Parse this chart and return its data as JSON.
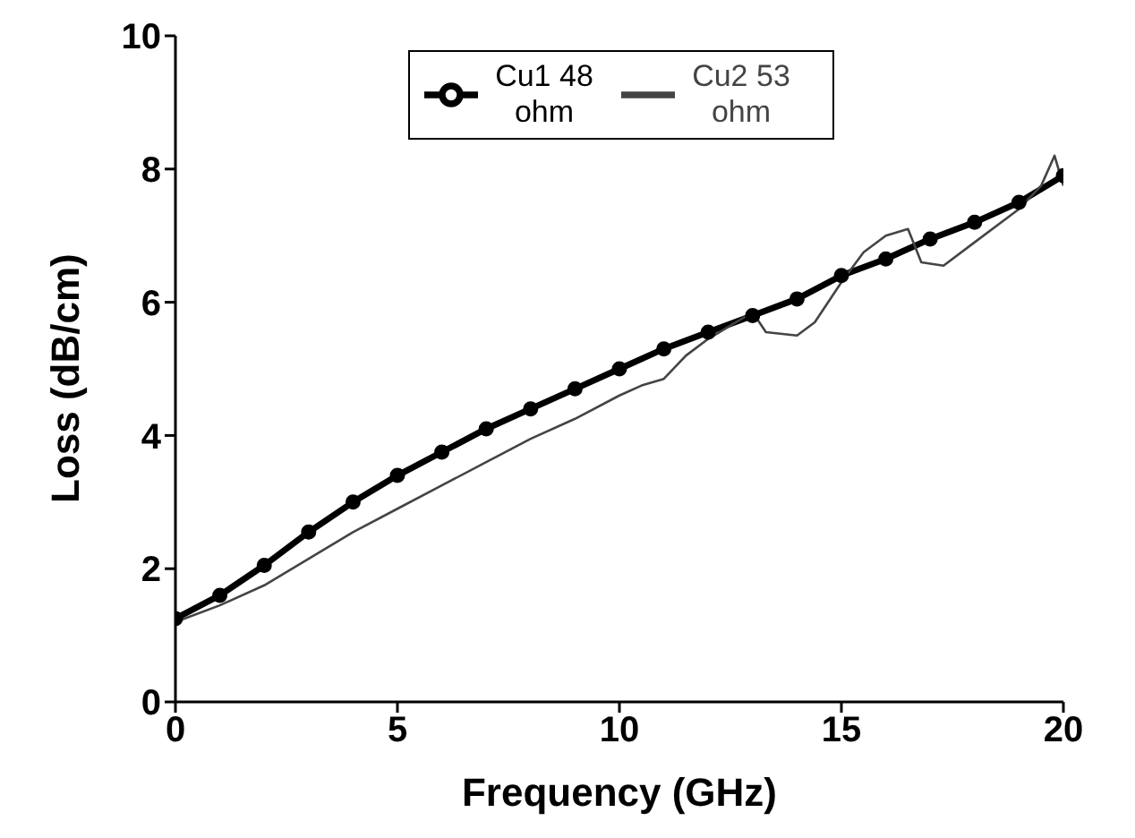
{
  "chart_data": {
    "type": "line",
    "xlabel": "Frequency  (GHz)",
    "ylabel": "Loss  (dB/cm)",
    "xlim": [
      0,
      20
    ],
    "xticks": [
      0,
      5,
      10,
      15,
      20
    ],
    "ylim": [
      0,
      10
    ],
    "yticks": [
      0,
      2,
      4,
      6,
      8,
      10
    ],
    "grid": false,
    "legend": "top",
    "series": [
      {
        "name": "Cu1 48 ohm",
        "color": "#000000",
        "marker": "circle",
        "x": [
          0,
          1,
          2,
          3,
          4,
          5,
          6,
          7,
          8,
          9,
          10,
          11,
          12,
          13,
          14,
          15,
          16,
          17,
          18,
          19,
          20
        ],
        "values": [
          1.25,
          1.6,
          2.05,
          2.55,
          3.0,
          3.4,
          3.75,
          4.1,
          4.4,
          4.7,
          5.0,
          5.3,
          5.55,
          5.8,
          6.05,
          6.4,
          6.65,
          6.95,
          7.2,
          7.5,
          7.9
        ]
      },
      {
        "name": "Cu2 53 ohm",
        "color": "#444444",
        "marker": "none",
        "x": [
          0,
          1,
          2,
          3,
          4,
          5,
          6,
          7,
          8,
          9,
          10,
          10.5,
          11,
          11.5,
          12,
          12.5,
          13,
          13.3,
          14,
          14.4,
          15,
          15.5,
          16,
          16.5,
          16.8,
          17.3,
          18,
          19,
          19.5,
          19.8,
          20
        ],
        "values": [
          1.2,
          1.45,
          1.75,
          2.15,
          2.55,
          2.9,
          3.25,
          3.6,
          3.95,
          4.25,
          4.6,
          4.75,
          4.85,
          5.2,
          5.45,
          5.65,
          5.85,
          5.55,
          5.5,
          5.7,
          6.3,
          6.75,
          7.0,
          7.1,
          6.6,
          6.55,
          6.9,
          7.4,
          7.75,
          8.2,
          7.75
        ]
      }
    ]
  }
}
